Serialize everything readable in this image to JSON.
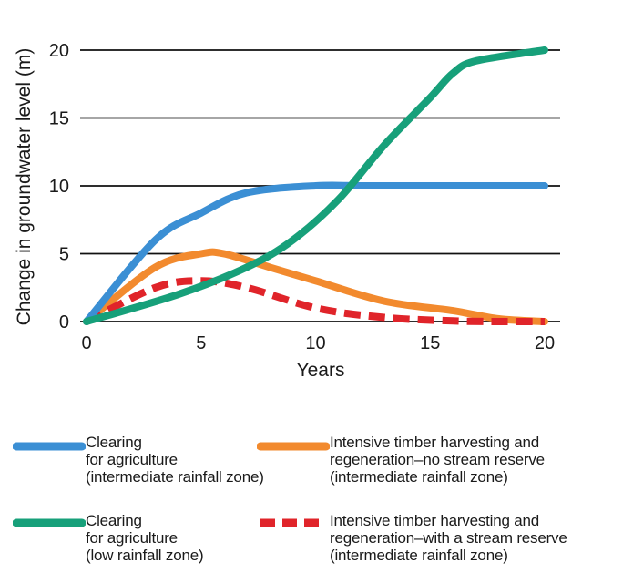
{
  "chart_data": {
    "type": "line",
    "title": "",
    "xlabel": "Years",
    "ylabel": "Change in groundwater level (m)",
    "xlim": [
      0,
      20
    ],
    "ylim": [
      0,
      20
    ],
    "xticks": [
      "0",
      "5",
      "10",
      "15",
      "20"
    ],
    "yticks": [
      "0",
      "5",
      "10",
      "15",
      "20"
    ],
    "grid": "horizontal",
    "legend_position": "bottom",
    "series": [
      {
        "name_lines": [
          "Clearing",
          "for agriculture",
          "(intermediate rainfall zone)"
        ],
        "color": "#3b8fd4",
        "style": "solid",
        "x": [
          0,
          3,
          5,
          7,
          10,
          12,
          15,
          20
        ],
        "y": [
          0,
          6,
          8,
          9.5,
          10,
          10,
          10,
          10
        ]
      },
      {
        "name_lines": [
          "Intensive timber harvesting and",
          "regeneration–no stream reserve",
          "(intermediate rainfall zone)"
        ],
        "color": "#f28a2e",
        "style": "solid",
        "x": [
          0,
          3,
          5,
          6,
          8,
          10,
          13,
          16,
          18,
          20
        ],
        "y": [
          0,
          4,
          5,
          5,
          4,
          3,
          1.5,
          0.8,
          0.2,
          0
        ]
      },
      {
        "name_lines": [
          "Clearing",
          "for agriculture",
          "(low rainfall zone)"
        ],
        "color": "#17a07a",
        "style": "solid",
        "x": [
          0,
          4,
          7,
          9,
          11,
          13,
          15,
          16,
          17,
          20
        ],
        "y": [
          0,
          2,
          4,
          6,
          9,
          13,
          16.5,
          18.3,
          19.2,
          20
        ]
      },
      {
        "name_lines": [
          "Intensive timber harvesting and",
          "regeneration–with a stream reserve",
          "(intermediate rainfall zone)"
        ],
        "color": "#e0242a",
        "style": "dashed",
        "x": [
          0,
          3,
          5,
          7,
          10,
          13,
          16,
          18,
          20
        ],
        "y": [
          0,
          2.5,
          3,
          2.5,
          1,
          0.3,
          0.05,
          0,
          0
        ]
      }
    ]
  }
}
